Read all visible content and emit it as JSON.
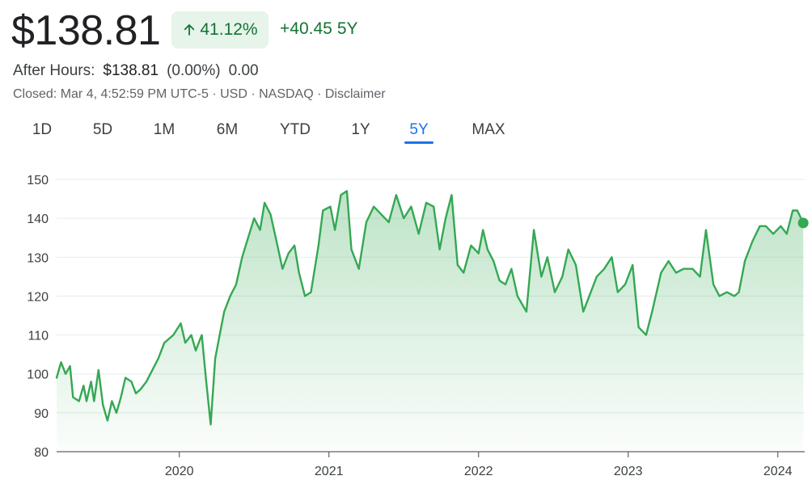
{
  "header": {
    "price": "$138.81",
    "percent_change": "41.12%",
    "absolute_change": "+40.45",
    "range_label": "5Y"
  },
  "after_hours": {
    "label": "After Hours:",
    "price": "$138.81",
    "percent": "(0.00%)",
    "change": "0.00"
  },
  "status": {
    "closed_text": "Closed: Mar 4, 4:52:59 PM UTC-5 · USD · NASDAQ · ",
    "disclaimer": "Disclaimer"
  },
  "tabs": [
    {
      "label": "1D",
      "active": false
    },
    {
      "label": "5D",
      "active": false
    },
    {
      "label": "1M",
      "active": false
    },
    {
      "label": "6M",
      "active": false
    },
    {
      "label": "YTD",
      "active": false
    },
    {
      "label": "1Y",
      "active": false
    },
    {
      "label": "5Y",
      "active": true
    },
    {
      "label": "MAX",
      "active": false
    }
  ],
  "colors": {
    "line": "#34a853",
    "positive": "#137333",
    "badge_bg": "#e6f4ea",
    "accent": "#1a73e8",
    "grid": "#e8eaed"
  },
  "chart_data": {
    "type": "area",
    "title": "",
    "xlabel": "",
    "ylabel": "",
    "ylim": [
      80,
      150
    ],
    "xlim": [
      2019.18,
      2024.18
    ],
    "yticks": [
      80,
      90,
      100,
      110,
      120,
      130,
      140,
      150
    ],
    "xticks": [
      {
        "value": 2020.0,
        "label": "2020"
      },
      {
        "value": 2021.0,
        "label": "2021"
      },
      {
        "value": 2022.0,
        "label": "2022"
      },
      {
        "value": 2023.0,
        "label": "2023"
      },
      {
        "value": 2024.0,
        "label": "2024"
      }
    ],
    "series": [
      {
        "name": "Price",
        "points": [
          [
            2019.18,
            99
          ],
          [
            2019.21,
            103
          ],
          [
            2019.24,
            100
          ],
          [
            2019.27,
            102
          ],
          [
            2019.29,
            94
          ],
          [
            2019.33,
            93
          ],
          [
            2019.36,
            97
          ],
          [
            2019.38,
            93
          ],
          [
            2019.41,
            98
          ],
          [
            2019.43,
            93
          ],
          [
            2019.46,
            101
          ],
          [
            2019.49,
            92
          ],
          [
            2019.52,
            88
          ],
          [
            2019.55,
            93
          ],
          [
            2019.58,
            90
          ],
          [
            2019.61,
            94
          ],
          [
            2019.64,
            99
          ],
          [
            2019.68,
            98
          ],
          [
            2019.71,
            95
          ],
          [
            2019.74,
            96
          ],
          [
            2019.78,
            98
          ],
          [
            2019.82,
            101
          ],
          [
            2019.86,
            104
          ],
          [
            2019.9,
            108
          ],
          [
            2019.93,
            109
          ],
          [
            2019.96,
            110
          ],
          [
            2020.01,
            113
          ],
          [
            2020.04,
            108
          ],
          [
            2020.08,
            110
          ],
          [
            2020.11,
            106
          ],
          [
            2020.15,
            110
          ],
          [
            2020.18,
            98
          ],
          [
            2020.21,
            87
          ],
          [
            2020.24,
            104
          ],
          [
            2020.27,
            110
          ],
          [
            2020.3,
            116
          ],
          [
            2020.34,
            120
          ],
          [
            2020.38,
            123
          ],
          [
            2020.42,
            130
          ],
          [
            2020.46,
            135
          ],
          [
            2020.5,
            140
          ],
          [
            2020.54,
            137
          ],
          [
            2020.57,
            144
          ],
          [
            2020.61,
            141
          ],
          [
            2020.65,
            134
          ],
          [
            2020.69,
            127
          ],
          [
            2020.73,
            131
          ],
          [
            2020.77,
            133
          ],
          [
            2020.8,
            126
          ],
          [
            2020.84,
            120
          ],
          [
            2020.88,
            121
          ],
          [
            2020.93,
            133
          ],
          [
            2020.96,
            142
          ],
          [
            2021.01,
            143
          ],
          [
            2021.04,
            137
          ],
          [
            2021.08,
            146
          ],
          [
            2021.12,
            147
          ],
          [
            2021.15,
            132
          ],
          [
            2021.2,
            127
          ],
          [
            2021.25,
            139
          ],
          [
            2021.3,
            143
          ],
          [
            2021.35,
            141
          ],
          [
            2021.4,
            139
          ],
          [
            2021.45,
            146
          ],
          [
            2021.5,
            140
          ],
          [
            2021.55,
            143
          ],
          [
            2021.6,
            136
          ],
          [
            2021.65,
            144
          ],
          [
            2021.7,
            143
          ],
          [
            2021.74,
            132
          ],
          [
            2021.78,
            140
          ],
          [
            2021.82,
            146
          ],
          [
            2021.86,
            128
          ],
          [
            2021.9,
            126
          ],
          [
            2021.95,
            133
          ],
          [
            2022.0,
            131
          ],
          [
            2022.03,
            137
          ],
          [
            2022.06,
            132
          ],
          [
            2022.1,
            129
          ],
          [
            2022.14,
            124
          ],
          [
            2022.18,
            123
          ],
          [
            2022.22,
            127
          ],
          [
            2022.26,
            120
          ],
          [
            2022.32,
            116
          ],
          [
            2022.37,
            137
          ],
          [
            2022.42,
            125
          ],
          [
            2022.46,
            130
          ],
          [
            2022.51,
            121
          ],
          [
            2022.56,
            125
          ],
          [
            2022.6,
            132
          ],
          [
            2022.65,
            128
          ],
          [
            2022.7,
            116
          ],
          [
            2022.74,
            120
          ],
          [
            2022.79,
            125
          ],
          [
            2022.84,
            127
          ],
          [
            2022.89,
            130
          ],
          [
            2022.93,
            121
          ],
          [
            2022.98,
            123
          ],
          [
            2023.03,
            128
          ],
          [
            2023.07,
            112
          ],
          [
            2023.12,
            110
          ],
          [
            2023.16,
            116
          ],
          [
            2023.22,
            126
          ],
          [
            2023.27,
            129
          ],
          [
            2023.32,
            126
          ],
          [
            2023.37,
            127
          ],
          [
            2023.43,
            127
          ],
          [
            2023.48,
            125
          ],
          [
            2023.52,
            137
          ],
          [
            2023.57,
            123
          ],
          [
            2023.61,
            120
          ],
          [
            2023.66,
            121
          ],
          [
            2023.71,
            120
          ],
          [
            2023.74,
            121
          ],
          [
            2023.78,
            129
          ],
          [
            2023.83,
            134
          ],
          [
            2023.88,
            138
          ],
          [
            2023.92,
            138
          ],
          [
            2023.97,
            136
          ],
          [
            2024.02,
            138
          ],
          [
            2024.06,
            136
          ],
          [
            2024.1,
            142
          ],
          [
            2024.13,
            142
          ],
          [
            2024.17,
            138.81
          ]
        ]
      }
    ]
  }
}
